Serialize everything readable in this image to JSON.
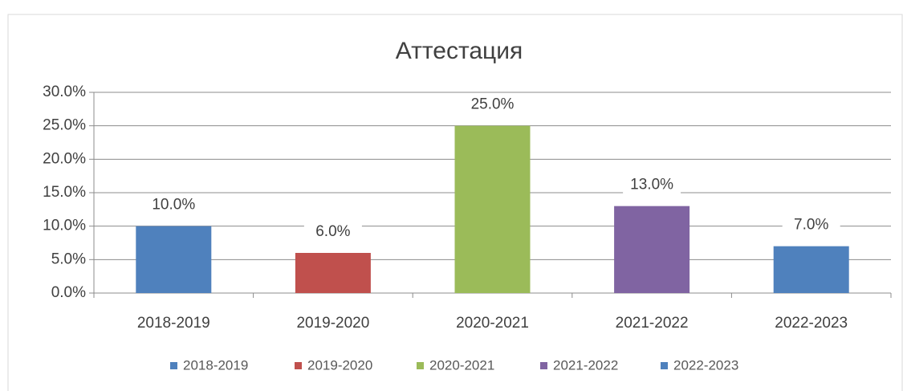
{
  "chart_data": {
    "type": "bar",
    "title": "Аттестация",
    "categories": [
      "2018-2019",
      "2019-2020",
      "2020-2021",
      "2021-2022",
      "2022-2023"
    ],
    "values": [
      10,
      6,
      25,
      13,
      7
    ],
    "value_labels": [
      "10.0%",
      "6.0%",
      "25.0%",
      "13.0%",
      "7.0%"
    ],
    "colors": [
      "#4f81bd",
      "#c0504d",
      "#9bbb59",
      "#8064a2",
      "#4f81bd"
    ],
    "ylim": [
      0,
      30
    ],
    "yticks": [
      {
        "value": 0,
        "label": "0.0%"
      },
      {
        "value": 5,
        "label": "5.0%"
      },
      {
        "value": 10,
        "label": "10.0%"
      },
      {
        "value": 15,
        "label": "15.0%"
      },
      {
        "value": 20,
        "label": "20.0%"
      },
      {
        "value": 25,
        "label": "25.0%"
      },
      {
        "value": 30,
        "label": "30.0%"
      }
    ],
    "grid": true,
    "legend": "bottom"
  }
}
